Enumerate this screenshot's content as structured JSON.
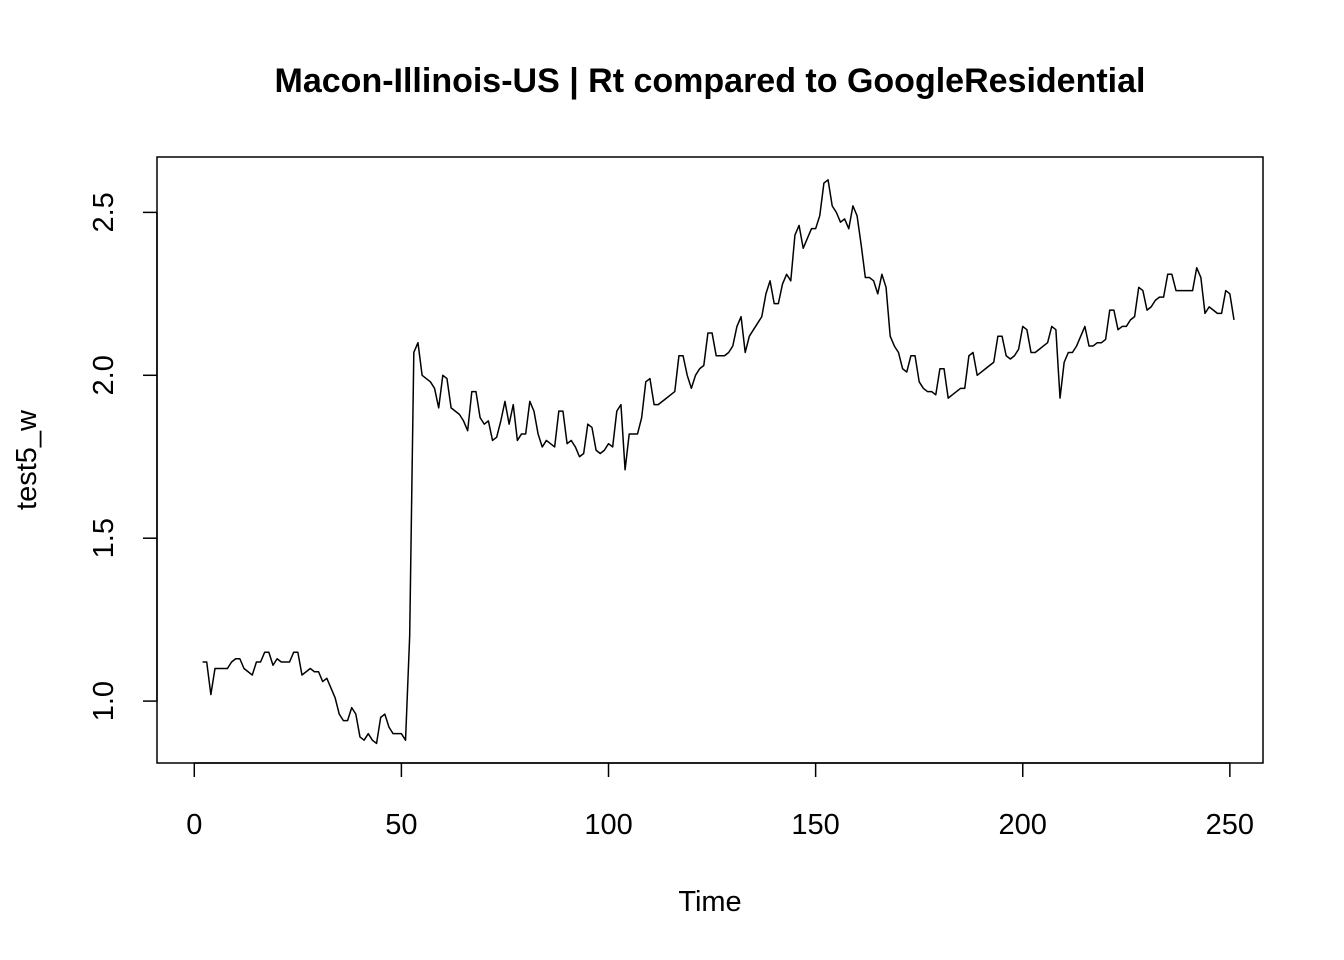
{
  "chart_data": {
    "type": "line",
    "title": "Macon-Illinois-US | Rt compared to GoogleResidential",
    "xlabel": "Time",
    "ylabel": "test5_w",
    "xlim": [
      -9,
      258
    ],
    "ylim": [
      0.81,
      2.67
    ],
    "x_ticks": [
      0,
      50,
      100,
      150,
      200,
      250
    ],
    "y_ticks": [
      1.0,
      1.5,
      2.0,
      2.5
    ],
    "x_tick_labels": [
      "0",
      "50",
      "100",
      "150",
      "200",
      "250"
    ],
    "y_tick_labels": [
      "1.0",
      "1.5",
      "2.0",
      "2.5"
    ],
    "grid": false,
    "legend": "none",
    "line_color": "#000000",
    "series": [
      {
        "x_start": 2,
        "values": [
          1.12,
          1.12,
          1.02,
          1.1,
          1.1,
          1.1,
          1.1,
          1.12,
          1.13,
          1.13,
          1.1,
          1.09,
          1.08,
          1.12,
          1.12,
          1.15,
          1.15,
          1.11,
          1.13,
          1.12,
          1.12,
          1.12,
          1.15,
          1.15,
          1.08,
          1.09,
          1.1,
          1.09,
          1.09,
          1.06,
          1.07,
          1.04,
          1.01,
          0.96,
          0.94,
          0.94,
          0.98,
          0.96,
          0.89,
          0.88,
          0.9,
          0.88,
          0.87,
          0.95,
          0.96,
          0.92,
          0.9,
          0.9,
          0.9,
          0.88,
          1.2,
          2.07,
          2.1,
          2.0,
          1.99,
          1.98,
          1.96,
          1.9,
          2.0,
          1.99,
          1.9,
          1.89,
          1.88,
          1.86,
          1.83,
          1.95,
          1.95,
          1.87,
          1.85,
          1.86,
          1.8,
          1.81,
          1.86,
          1.92,
          1.85,
          1.91,
          1.8,
          1.82,
          1.82,
          1.92,
          1.89,
          1.82,
          1.78,
          1.8,
          1.79,
          1.78,
          1.89,
          1.89,
          1.79,
          1.8,
          1.78,
          1.75,
          1.76,
          1.85,
          1.84,
          1.77,
          1.76,
          1.77,
          1.79,
          1.78,
          1.89,
          1.91,
          1.71,
          1.82,
          1.82,
          1.82,
          1.87,
          1.98,
          1.99,
          1.91,
          1.91,
          1.92,
          1.93,
          1.94,
          1.95,
          2.06,
          2.06,
          2.0,
          1.96,
          2.0,
          2.02,
          2.03,
          2.13,
          2.13,
          2.06,
          2.06,
          2.06,
          2.07,
          2.09,
          2.15,
          2.18,
          2.07,
          2.12,
          2.14,
          2.16,
          2.18,
          2.25,
          2.29,
          2.22,
          2.22,
          2.28,
          2.31,
          2.29,
          2.43,
          2.46,
          2.39,
          2.42,
          2.45,
          2.45,
          2.49,
          2.59,
          2.6,
          2.52,
          2.5,
          2.47,
          2.48,
          2.45,
          2.52,
          2.49,
          2.4,
          2.3,
          2.3,
          2.29,
          2.25,
          2.31,
          2.27,
          2.12,
          2.09,
          2.07,
          2.02,
          2.01,
          2.06,
          2.06,
          1.98,
          1.96,
          1.95,
          1.95,
          1.94,
          2.02,
          2.02,
          1.93,
          1.94,
          1.95,
          1.96,
          1.96,
          2.06,
          2.07,
          2.0,
          2.01,
          2.02,
          2.03,
          2.04,
          2.12,
          2.12,
          2.06,
          2.05,
          2.06,
          2.08,
          2.15,
          2.14,
          2.07,
          2.07,
          2.08,
          2.09,
          2.1,
          2.15,
          2.14,
          1.93,
          2.04,
          2.07,
          2.07,
          2.09,
          2.12,
          2.15,
          2.09,
          2.09,
          2.1,
          2.1,
          2.11,
          2.2,
          2.2,
          2.14,
          2.15,
          2.15,
          2.17,
          2.18,
          2.27,
          2.26,
          2.2,
          2.21,
          2.23,
          2.24,
          2.24,
          2.31,
          2.31,
          2.26,
          2.26,
          2.26,
          2.26,
          2.26,
          2.33,
          2.3,
          2.19,
          2.21,
          2.2,
          2.19,
          2.19,
          2.26,
          2.25,
          2.17
        ]
      }
    ]
  }
}
